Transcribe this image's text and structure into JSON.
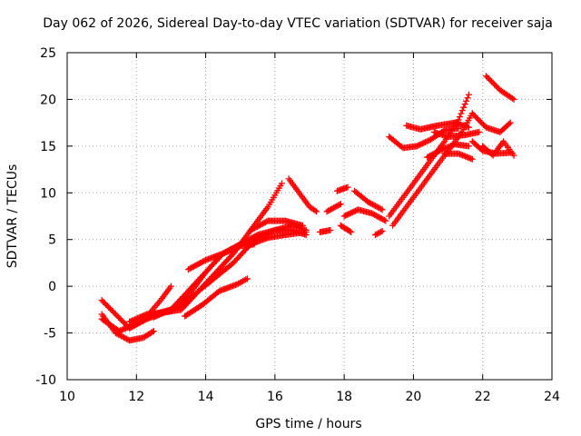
{
  "chart_data": {
    "type": "scatter",
    "title": "Day 062 of 2026, Sidereal Day-to-day VTEC variation (SDTVAR) for receiver saja",
    "xlabel": "GPS time / hours",
    "ylabel": "SDTVAR / TECUs",
    "xlim": [
      10,
      24
    ],
    "ylim": [
      -10,
      25
    ],
    "xticks": [
      10,
      12,
      14,
      16,
      18,
      20,
      22,
      24
    ],
    "yticks": [
      -10,
      -5,
      0,
      5,
      10,
      15,
      20,
      25
    ],
    "grid": true,
    "marker": "plus",
    "color": "#ff0000",
    "tracks": [
      {
        "x": [
          11.0,
          11.4,
          11.8,
          12.3,
          12.8,
          13.3,
          13.8,
          14.3,
          14.8,
          15.3,
          15.8,
          16.2
        ],
        "y": [
          -1.5,
          -3.0,
          -4.5,
          -3.5,
          -2.8,
          -2.5,
          -0.5,
          1.5,
          3.5,
          6.0,
          8.5,
          11.0
        ]
      },
      {
        "x": [
          11.0,
          11.5,
          12.0,
          12.5,
          13.0,
          13.5,
          14.0,
          14.5,
          15.0,
          15.5,
          16.0,
          16.5,
          16.9
        ],
        "y": [
          -3.5,
          -4.8,
          -4.0,
          -3.0,
          -2.5,
          -1.0,
          1.5,
          3.5,
          4.5,
          5.2,
          6.0,
          6.0,
          5.5
        ]
      },
      {
        "x": [
          11.0,
          11.4,
          11.8,
          12.2,
          12.5
        ],
        "y": [
          -3.0,
          -5.0,
          -5.8,
          -5.5,
          -4.8
        ]
      },
      {
        "x": [
          11.8,
          12.3,
          12.8,
          13.3,
          13.8,
          14.3,
          14.8,
          15.3,
          15.8,
          16.3,
          16.9
        ],
        "y": [
          -3.8,
          -3.0,
          -2.8,
          -2.2,
          -0.5,
          1.0,
          2.5,
          4.5,
          5.2,
          5.5,
          5.8
        ]
      },
      {
        "x": [
          12.5,
          13.0,
          13.5,
          14.0,
          14.5,
          15.0,
          15.5,
          16.0,
          16.5,
          16.9
        ],
        "y": [
          -3.3,
          -2.5,
          -0.5,
          1.5,
          3.5,
          4.5,
          5.5,
          6.0,
          6.5,
          6.0
        ]
      },
      {
        "x": [
          12.4,
          12.7,
          13.0
        ],
        "y": [
          -2.8,
          -1.5,
          0.0
        ]
      },
      {
        "x": [
          13.5,
          14.0,
          14.5,
          15.0,
          15.4
        ],
        "y": [
          1.8,
          2.8,
          3.5,
          4.3,
          4.5
        ]
      },
      {
        "x": [
          13.4,
          13.9,
          14.4,
          14.9,
          15.2
        ],
        "y": [
          -3.2,
          -2.0,
          -0.5,
          0.2,
          0.8
        ]
      },
      {
        "x": [
          15.3,
          15.8,
          16.3,
          16.8
        ],
        "y": [
          6.0,
          7.0,
          7.0,
          6.5
        ]
      },
      {
        "x": [
          16.4,
          16.7,
          17.0,
          17.2
        ],
        "y": [
          11.5,
          10.0,
          8.5,
          8.0
        ]
      },
      {
        "x": [
          17.3,
          17.6
        ],
        "y": [
          5.8,
          6.0
        ]
      },
      {
        "x": [
          17.5,
          17.9
        ],
        "y": [
          8.0,
          8.8
        ]
      },
      {
        "x": [
          17.8,
          18.1
        ],
        "y": [
          10.2,
          10.6
        ]
      },
      {
        "x": [
          17.9,
          18.2
        ],
        "y": [
          6.5,
          5.8
        ]
      },
      {
        "x": [
          18.0,
          18.4,
          18.8,
          19.2
        ],
        "y": [
          7.5,
          8.2,
          7.8,
          7.0
        ]
      },
      {
        "x": [
          18.3,
          18.7,
          19.1
        ],
        "y": [
          10.2,
          9.0,
          8.2
        ]
      },
      {
        "x": [
          18.9,
          19.1
        ],
        "y": [
          5.5,
          5.9
        ]
      },
      {
        "x": [
          19.3,
          19.7,
          20.1,
          20.5,
          20.9,
          21.3,
          21.6
        ],
        "y": [
          7.5,
          9.5,
          11.5,
          13.5,
          15.5,
          17.8,
          20.5
        ]
      },
      {
        "x": [
          19.4,
          19.8,
          20.2,
          20.6,
          21.0,
          21.4,
          21.7
        ],
        "y": [
          6.5,
          8.5,
          10.5,
          12.5,
          14.5,
          16.5,
          18.5
        ]
      },
      {
        "x": [
          19.3,
          19.7,
          20.1,
          20.5,
          20.9,
          21.3
        ],
        "y": [
          16.0,
          14.8,
          15.0,
          15.7,
          16.7,
          16.9
        ]
      },
      {
        "x": [
          19.8,
          20.2,
          20.7,
          21.2,
          21.6
        ],
        "y": [
          17.2,
          16.8,
          17.2,
          17.5,
          17.0
        ]
      },
      {
        "x": [
          20.4,
          20.8,
          21.2,
          21.6
        ],
        "y": [
          13.8,
          14.6,
          15.2,
          15.0
        ]
      },
      {
        "x": [
          20.6,
          21.0,
          21.5,
          21.9
        ],
        "y": [
          16.5,
          16.0,
          16.2,
          16.5
        ]
      },
      {
        "x": [
          20.9,
          21.3,
          21.7
        ],
        "y": [
          14.2,
          14.2,
          13.6
        ]
      },
      {
        "x": [
          21.7,
          22.1,
          22.5,
          22.8
        ],
        "y": [
          18.5,
          17.0,
          16.5,
          17.5
        ]
      },
      {
        "x": [
          21.7,
          22.0,
          22.4,
          22.8
        ],
        "y": [
          15.5,
          14.5,
          14.2,
          14.3
        ]
      },
      {
        "x": [
          22.0,
          22.3,
          22.6,
          22.9
        ],
        "y": [
          15.0,
          14.0,
          15.5,
          14.0
        ]
      },
      {
        "x": [
          22.1,
          22.5,
          22.9
        ],
        "y": [
          22.5,
          21.0,
          20.0
        ]
      }
    ]
  }
}
